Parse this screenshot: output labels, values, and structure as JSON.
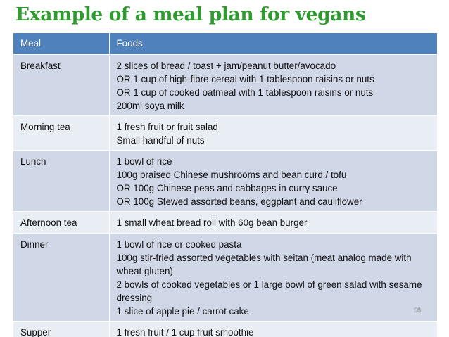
{
  "title": "Example of a meal plan for vegans",
  "table": {
    "headers": {
      "meal": "Meal",
      "foods": "Foods"
    },
    "rows": [
      {
        "meal": "Breakfast",
        "foods": [
          "2 slices of bread / toast +  jam/peanut butter/avocado",
          "OR 1 cup of high-fibre cereal with 1 tablespoon raisins or nuts",
          "OR 1 cup of cooked oatmeal with 1 tablespoon raisins or nuts",
          "200ml soya milk"
        ]
      },
      {
        "meal": "Morning tea",
        "foods": [
          "1 fresh fruit or fruit salad",
          "Small handful of nuts"
        ]
      },
      {
        "meal": "Lunch",
        "foods": [
          "1 bowl of rice",
          "100g braised Chinese mushrooms and bean curd / tofu",
          "OR 100g Chinese peas and cabbages  in curry sauce",
          "OR 100g Stewed assorted beans, eggplant and cauliflower"
        ]
      },
      {
        "meal": "Afternoon tea",
        "foods": [
          "1 small wheat bread roll with 60g bean burger"
        ]
      },
      {
        "meal": "Dinner",
        "foods": [
          "1 bowl of rice or cooked pasta",
          "100g stir-fried assorted vegetables with seitan (meat analog made with wheat gluten)",
          "2 bowls of cooked vegetables or 1 large bowl of green salad with sesame dressing",
          "1 slice of apple pie / carrot cake"
        ]
      },
      {
        "meal": "Supper",
        "foods": [
          "1 fresh fruit / 1 cup fruit smoothie"
        ]
      }
    ]
  },
  "page_number": "58"
}
